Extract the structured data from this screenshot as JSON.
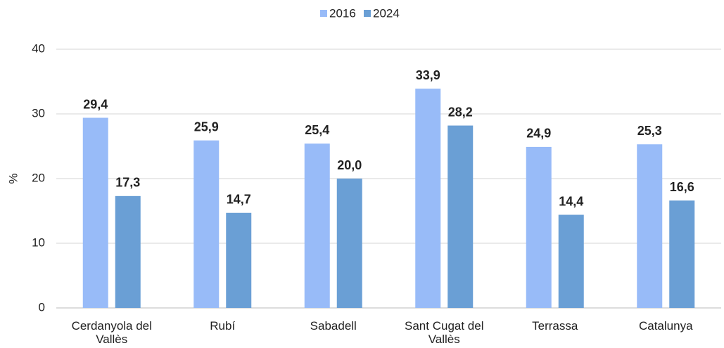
{
  "chart_data": {
    "type": "bar",
    "categories": [
      "Cerdanyola del Vallès",
      "Rubí",
      "Sabadell",
      "Sant Cugat del Vallès",
      "Terrassa",
      "Catalunya"
    ],
    "series": [
      {
        "name": "2016",
        "color": "#98bbf8",
        "values": [
          29.4,
          25.9,
          25.4,
          33.9,
          24.9,
          25.3
        ],
        "value_labels": [
          "29,4",
          "25,9",
          "25,4",
          "33,9",
          "24,9",
          "25,3"
        ]
      },
      {
        "name": "2024",
        "color": "#6a9fd5",
        "values": [
          17.3,
          14.7,
          20.0,
          28.2,
          14.4,
          16.6
        ],
        "value_labels": [
          "17,3",
          "14,7",
          "20,0",
          "28,2",
          "14,4",
          "16,6"
        ]
      }
    ],
    "ylabel": "%",
    "ylim": [
      0,
      40
    ],
    "yticks": [
      0,
      10,
      20,
      30,
      40
    ],
    "grid": true,
    "legend": "top"
  }
}
